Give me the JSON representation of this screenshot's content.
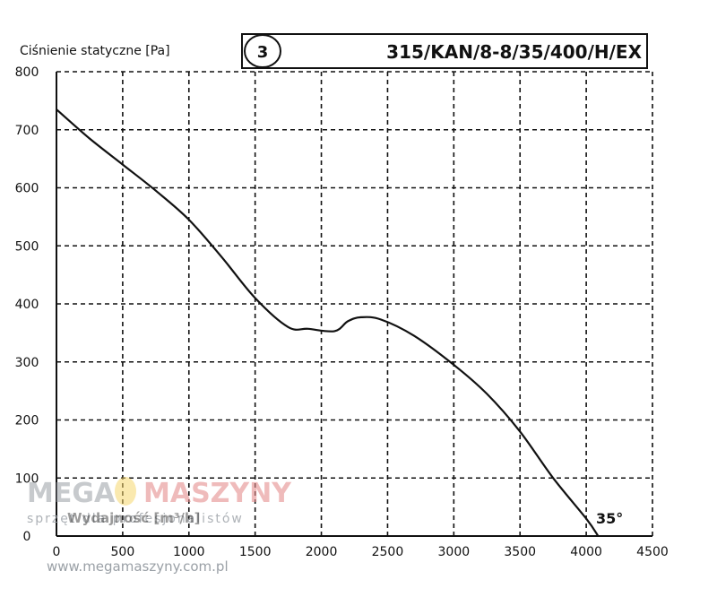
{
  "chart_data": {
    "type": "line",
    "title": "315/KAN/8-8/35/400/H/EX",
    "badge": "3",
    "ylabel": "Ciśnienie statyczne [Pa]",
    "xlabel": "Wydajność [m³/h]",
    "xlim": [
      0,
      4500
    ],
    "ylim": [
      0,
      800
    ],
    "xticks": [
      0,
      500,
      1000,
      1500,
      2000,
      2500,
      3000,
      3500,
      4000,
      4500
    ],
    "yticks": [
      0,
      100,
      200,
      300,
      400,
      500,
      600,
      700,
      800
    ],
    "grid": true,
    "series": [
      {
        "name": "35°",
        "x": [
          0,
          250,
          500,
          750,
          1000,
          1250,
          1500,
          1750,
          1900,
          2100,
          2200,
          2300,
          2450,
          2700,
          3000,
          3250,
          3500,
          3750,
          4000,
          4090
        ],
        "y": [
          735,
          685,
          640,
          595,
          545,
          480,
          410,
          360,
          357,
          353,
          370,
          377,
          373,
          345,
          295,
          245,
          180,
          100,
          30,
          0
        ]
      }
    ],
    "annotations": [
      "35°"
    ]
  },
  "watermark": {
    "brand_part1": "MEGA",
    "brand_part2": "MASZYNY",
    "tagline": "sprzęt dla profesjonalistów",
    "url": "www.megamaszyny.com.pl"
  },
  "colors": {
    "line": "#111111",
    "grid": "#111111",
    "axis": "#111111"
  }
}
